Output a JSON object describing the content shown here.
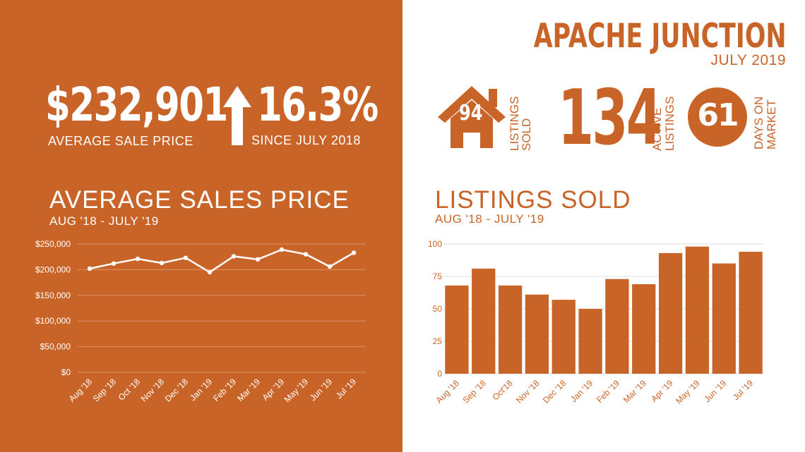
{
  "header": {
    "city": "APACHE JUNCTION",
    "period": "JULY 2019"
  },
  "stats": {
    "avg_price": "$232,901",
    "avg_price_label": "AVERAGE  SALE PRICE",
    "change": "16.3%",
    "change_label": "SINCE JULY 2018",
    "listings_sold": "94",
    "listings_sold_label_1": "LISTINGS",
    "listings_sold_label_2": "SOLD",
    "active": "134",
    "active_label_1": "ACTIVE",
    "active_label_2": "LISTINGS",
    "dom": "61",
    "dom_label_1": "DAYS ON",
    "dom_label_2": "MARKET"
  },
  "colors": {
    "brand": "#c96428",
    "white": "#ffffff"
  },
  "chart_data": [
    {
      "type": "line",
      "title": "AVERAGE SALES PRICE",
      "subtitle": "AUG '18 - JULY '19",
      "categories": [
        "Aug '18",
        "Sep '18",
        "Oct '18",
        "Nov '18",
        "Dec '18",
        "Jan '19",
        "Feb '19",
        "Mar '19",
        "Apr '19",
        "May '19",
        "Jun '19",
        "Jul '19"
      ],
      "values": [
        202000,
        212000,
        221000,
        213000,
        223000,
        195000,
        226000,
        220000,
        239000,
        230000,
        206000,
        232901
      ],
      "ylim": [
        0,
        250000
      ],
      "yticks": [
        0,
        50000,
        100000,
        150000,
        200000,
        250000
      ],
      "ytick_labels": [
        "$0",
        "$50,000",
        "$100,000",
        "$150,000",
        "$200,000",
        "$250,000"
      ],
      "grid": true
    },
    {
      "type": "bar",
      "title": "LISTINGS SOLD",
      "subtitle": "AUG '18 - JULY '19",
      "categories": [
        "Aug '18",
        "Sep '18",
        "Oct'18",
        "Nov '18",
        "Dec '18",
        "Jan '19",
        "Feb '19",
        "Mar '19",
        "Apr '19",
        "May '19",
        "Jun '19",
        "Jul '19"
      ],
      "values": [
        68,
        81,
        68,
        61,
        57,
        50,
        73,
        69,
        93,
        98,
        85,
        94
      ],
      "ylim": [
        0,
        100
      ],
      "yticks": [
        0,
        25,
        50,
        75,
        100
      ],
      "ytick_labels": [
        "0",
        "25",
        "50",
        "75",
        "100"
      ],
      "grid": true
    }
  ]
}
